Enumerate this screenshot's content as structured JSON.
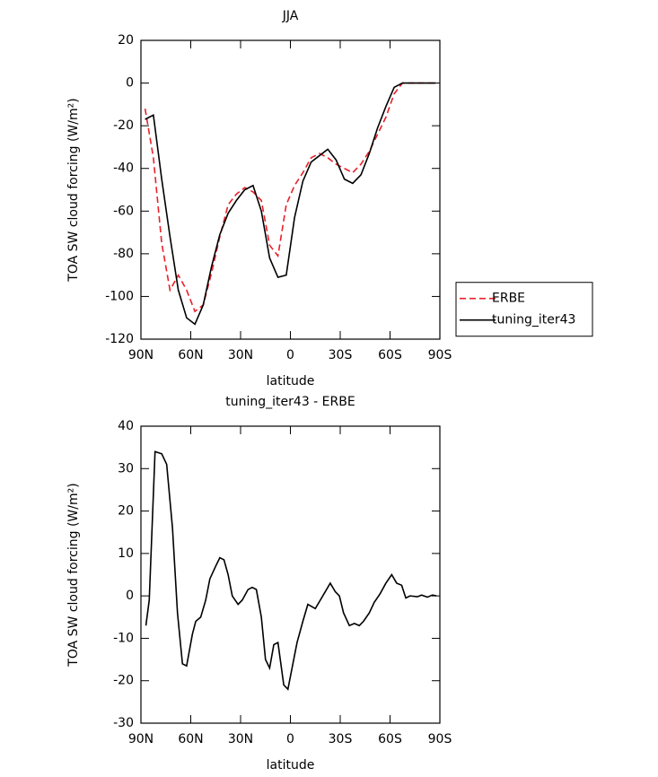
{
  "chart_data": [
    {
      "type": "line",
      "title": "JJA",
      "xlabel": "latitude",
      "ylabel": "TOA SW cloud forcing (W/m²)",
      "x": [
        87.5,
        82.5,
        77.5,
        72.5,
        67.5,
        62.5,
        57.5,
        52.5,
        47.5,
        42.5,
        37.5,
        32.5,
        27.5,
        22.5,
        17.5,
        12.5,
        7.5,
        2.5,
        -2.5,
        -7.5,
        -12.5,
        -17.5,
        -22.5,
        -27.5,
        -32.5,
        -37.5,
        -42.5,
        -47.5,
        -52.5,
        -57.5,
        -62.5,
        -67.5,
        -72.5,
        -77.5,
        -82.5,
        -87.5
      ],
      "series": [
        {
          "name": "ERBE",
          "color": "#e8202a",
          "style": "dashed",
          "values": [
            -12,
            -35,
            -75,
            -97,
            -90,
            -97,
            -107,
            -104,
            -89,
            -72,
            -57,
            -52,
            -49,
            -51,
            -55,
            -76,
            -81,
            -57,
            -48,
            -42,
            -35,
            -33,
            -35,
            -38,
            -40,
            -42,
            -38,
            -32,
            -24,
            -16,
            -5,
            0,
            0,
            0,
            0,
            0
          ]
        },
        {
          "name": "tuning_iter43",
          "color": "#000000",
          "style": "solid",
          "values": [
            -17,
            -15,
            -45,
            -72,
            -97,
            -110,
            -113,
            -104,
            -86,
            -71,
            -61,
            -55,
            -50,
            -48,
            -60,
            -82,
            -91,
            -90,
            -63,
            -46,
            -37,
            -34,
            -31,
            -36,
            -45,
            -47,
            -43,
            -33,
            -21,
            -11,
            -2,
            0,
            0,
            0,
            0,
            0
          ]
        }
      ],
      "xlim": [
        90,
        -90
      ],
      "xticks": [
        {
          "value": 90,
          "label": "90N"
        },
        {
          "value": 60,
          "label": "60N"
        },
        {
          "value": 30,
          "label": "30N"
        },
        0,
        {
          "value": -30,
          "label": "30S"
        },
        {
          "value": -60,
          "label": "60S"
        },
        {
          "value": -90,
          "label": "90S"
        }
      ],
      "ylim": [
        -120,
        20
      ],
      "yticks": [
        20,
        0,
        -20,
        -40,
        -60,
        -80,
        -100,
        -120
      ],
      "legend": "right"
    },
    {
      "type": "line",
      "title": "tuning_iter43 - ERBE",
      "xlabel": "latitude",
      "ylabel": "TOA SW cloud forcing (W/m²)",
      "x": [
        87,
        85,
        81.5,
        77.5,
        74.5,
        71,
        68,
        65,
        62.5,
        59,
        57,
        54,
        51,
        48.5,
        45,
        42.5,
        40,
        37.5,
        35,
        31.5,
        29,
        25.5,
        23,
        20.5,
        17.5,
        15,
        12.5,
        10,
        7.5,
        4,
        1.5,
        -1.5,
        -4,
        -7.5,
        -10.5,
        -15,
        -18,
        -21,
        -24,
        -27,
        -29.5,
        -32,
        -35.5,
        -38.5,
        -41.5,
        -44,
        -47.5,
        -50.5,
        -54,
        -57.5,
        -61,
        -64,
        -67,
        -69.5,
        -72,
        -76.5,
        -79,
        -82.5,
        -85.5,
        -88
      ],
      "series": [
        {
          "color": "#000000",
          "style": "solid",
          "values": [
            -7,
            -1,
            34,
            33.5,
            31,
            16,
            -4,
            -16,
            -16.5,
            -9,
            -6,
            -5,
            -1,
            4,
            7,
            9,
            8.5,
            5,
            0,
            -2,
            -1,
            1.5,
            2,
            1.5,
            -5,
            -15,
            -17,
            -11.5,
            -11,
            -21,
            -22,
            -16,
            -11,
            -6,
            -2,
            -3,
            -1,
            1,
            3,
            1,
            0,
            -4,
            -7,
            -6.5,
            -7,
            -6,
            -4,
            -1.5,
            0.5,
            3,
            5,
            3,
            2.5,
            -0.5,
            0,
            -0.2,
            0.2,
            -0.3,
            0.2,
            0
          ]
        }
      ],
      "xlim": [
        90,
        -90
      ],
      "xticks": [
        {
          "value": 90,
          "label": "90N"
        },
        {
          "value": 60,
          "label": "60N"
        },
        {
          "value": 30,
          "label": "30N"
        },
        0,
        {
          "value": -30,
          "label": "30S"
        },
        {
          "value": -60,
          "label": "60S"
        },
        {
          "value": -90,
          "label": "90S"
        }
      ],
      "ylim": [
        -30,
        40
      ],
      "yticks": [
        40,
        30,
        20,
        10,
        0,
        -10,
        -20,
        -30
      ]
    }
  ]
}
